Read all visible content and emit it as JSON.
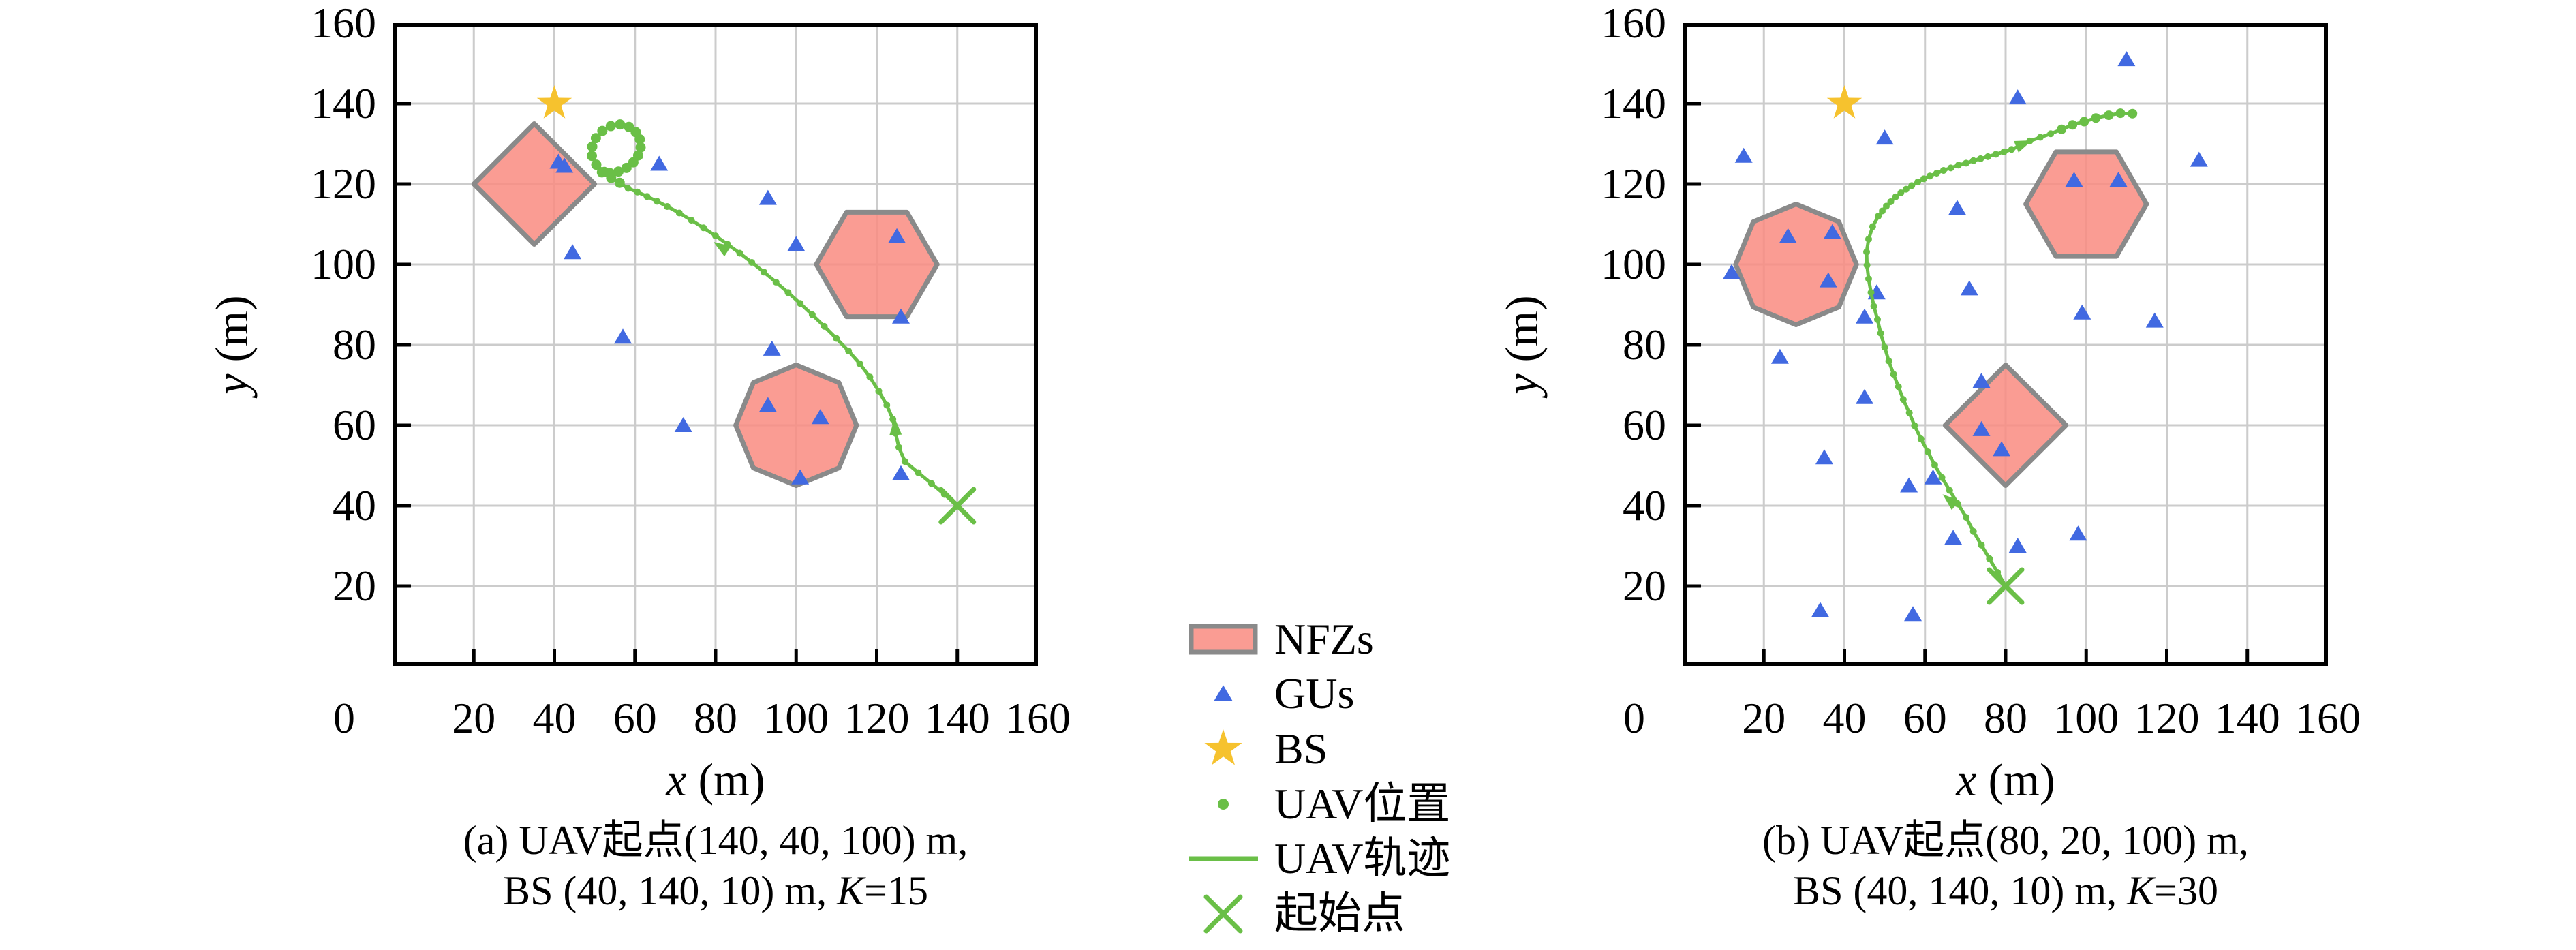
{
  "figure": {
    "colors": {
      "nfz_fill": "#f98b80",
      "nfz_edge": "#8a8a8a",
      "gu_blue": "#4169e1",
      "bs_gold": "#f6c22e",
      "uav_green": "#6abf47",
      "grid": "#cccccc",
      "axis": "#000000"
    },
    "legend": {
      "items": [
        {
          "type": "nfz-swatch",
          "label": "NFZs"
        },
        {
          "type": "triangle",
          "label": "GUs"
        },
        {
          "type": "star",
          "label": "BS"
        },
        {
          "type": "dot",
          "label": "UAV位置"
        },
        {
          "type": "line",
          "label": "UAV轨迹"
        },
        {
          "type": "x",
          "label": "起始点"
        }
      ]
    }
  },
  "chart_data": [
    {
      "type": "scatter",
      "id": "a",
      "title": "",
      "xlabel_var": "x",
      "xlabel_unit": " (m)",
      "ylabel_var": "y",
      "ylabel_unit": " (m)",
      "xlim": [
        0,
        160
      ],
      "ylim": [
        0,
        160
      ],
      "grid": true,
      "origin_label": "0",
      "xticks": [
        20,
        40,
        60,
        80,
        100,
        120,
        140,
        160
      ],
      "yticks": [
        20,
        40,
        60,
        80,
        100,
        120,
        140,
        160
      ],
      "caption": {
        "line1": "(a) UAV起点(140, 40, 100) m,",
        "line2_prefix": "BS (40, 140, 10) m, ",
        "line2_k": "K",
        "line2_suffix": "=15"
      },
      "bs": [
        40,
        140
      ],
      "start": [
        140,
        40
      ],
      "nfzs": [
        {
          "shape": "diamond",
          "center": [
            35,
            120
          ],
          "radius": 15
        },
        {
          "shape": "hexagon",
          "center": [
            120,
            100
          ],
          "radius": 15
        },
        {
          "shape": "octagon",
          "center": [
            100,
            60
          ],
          "radius": 15
        }
      ],
      "gus": [
        [
          41,
          125.5
        ],
        [
          42.5,
          124.5
        ],
        [
          66,
          125
        ],
        [
          93,
          116.5
        ],
        [
          100,
          105
        ],
        [
          125,
          107
        ],
        [
          126,
          87
        ],
        [
          44.5,
          103
        ],
        [
          57,
          82
        ],
        [
          72,
          60
        ],
        [
          94,
          79
        ],
        [
          93,
          65
        ],
        [
          106,
          62
        ],
        [
          101,
          47
        ],
        [
          126,
          48
        ]
      ],
      "trajectory": [
        [
          140,
          40
        ],
        [
          136.8,
          42.8
        ],
        [
          133.6,
          45.5
        ],
        [
          130.3,
          48.2
        ],
        [
          127,
          51
        ],
        [
          125.5,
          54.5
        ],
        [
          124.7,
          58
        ],
        [
          124,
          61.5
        ],
        [
          122.5,
          65
        ],
        [
          120.5,
          68.5
        ],
        [
          118.3,
          72
        ],
        [
          115.8,
          75.3
        ],
        [
          113,
          78.5
        ],
        [
          110,
          81.6
        ],
        [
          107,
          84.6
        ],
        [
          104,
          87.5
        ],
        [
          101,
          90.3
        ],
        [
          98,
          93
        ],
        [
          95,
          95.6
        ],
        [
          92,
          98.1
        ],
        [
          89,
          100.5
        ],
        [
          86,
          102.8
        ],
        [
          83,
          105
        ],
        [
          80,
          107.1
        ],
        [
          77,
          109.1
        ],
        [
          74,
          111
        ],
        [
          71,
          112.8
        ],
        [
          68,
          114.4
        ],
        [
          65.5,
          115.7
        ],
        [
          63,
          116.9
        ],
        [
          60.6,
          118
        ],
        [
          58.3,
          118.9
        ],
        [
          56.2,
          120.3
        ],
        [
          54.1,
          121.5
        ],
        [
          52.4,
          123
        ],
        [
          50.4,
          124.8
        ],
        [
          49.3,
          127
        ],
        [
          49.4,
          129.3
        ],
        [
          50.3,
          131.4
        ],
        [
          51.9,
          133.2
        ],
        [
          54,
          134.4
        ],
        [
          56.3,
          134.8
        ],
        [
          58.5,
          134.2
        ],
        [
          60.2,
          132.9
        ],
        [
          61.2,
          131.1
        ],
        [
          61.4,
          129.1
        ],
        [
          60.8,
          127.1
        ],
        [
          59.6,
          125.4
        ],
        [
          57.9,
          124
        ],
        [
          55.9,
          123.1
        ],
        [
          53.8,
          122.7
        ],
        [
          51.8,
          122.9
        ]
      ],
      "dot_r_default": 5,
      "dot_r_large": 7.5,
      "large_from_index": 32,
      "arrows": [
        {
          "pos": [
            81.6,
            104.2
          ],
          "angle_deg": 147
        },
        {
          "pos": [
            124.6,
            59.3
          ],
          "angle_deg": 93
        }
      ]
    },
    {
      "type": "scatter",
      "id": "b",
      "title": "",
      "xlabel_var": "x",
      "xlabel_unit": " (m)",
      "ylabel_var": "y",
      "ylabel_unit": " (m)",
      "xlim": [
        0,
        160
      ],
      "ylim": [
        0,
        160
      ],
      "grid": true,
      "origin_label": "0",
      "xticks": [
        20,
        40,
        60,
        80,
        100,
        120,
        140,
        160
      ],
      "yticks": [
        20,
        40,
        60,
        80,
        100,
        120,
        140,
        160
      ],
      "caption": {
        "line1": "(b) UAV起点(80, 20, 100) m,",
        "line2_prefix": "BS (40, 140, 10) m, ",
        "line2_k": "K",
        "line2_suffix": "=30"
      },
      "bs": [
        40,
        140
      ],
      "start": [
        80,
        20
      ],
      "nfzs": [
        {
          "shape": "octagon",
          "center": [
            28,
            100
          ],
          "radius": 15
        },
        {
          "shape": "hexagon",
          "center": [
            100,
            115
          ],
          "radius": 15
        },
        {
          "shape": "diamond",
          "center": [
            80,
            60
          ],
          "radius": 15
        }
      ],
      "gus": [
        [
          110,
          151
        ],
        [
          83,
          141.5
        ],
        [
          15,
          127
        ],
        [
          50,
          131.5
        ],
        [
          128,
          126
        ],
        [
          97,
          121
        ],
        [
          108,
          121
        ],
        [
          68,
          114
        ],
        [
          26,
          107
        ],
        [
          37,
          108
        ],
        [
          36,
          96
        ],
        [
          12,
          98
        ],
        [
          48,
          93
        ],
        [
          45,
          87
        ],
        [
          71,
          94
        ],
        [
          99,
          88
        ],
        [
          117,
          86
        ],
        [
          24,
          77
        ],
        [
          74,
          71
        ],
        [
          45,
          67
        ],
        [
          74,
          59
        ],
        [
          79,
          54
        ],
        [
          35,
          52
        ],
        [
          56,
          45
        ],
        [
          62,
          47
        ],
        [
          67,
          32
        ],
        [
          83,
          30
        ],
        [
          98,
          33
        ],
        [
          34,
          14
        ],
        [
          57,
          13
        ]
      ],
      "trajectory": [
        [
          80,
          20
        ],
        [
          78,
          23.4
        ],
        [
          76,
          26.8
        ],
        [
          74,
          30.2
        ],
        [
          72,
          33.6
        ],
        [
          70.2,
          37.1
        ],
        [
          68.2,
          40.4
        ],
        [
          66.1,
          43.8
        ],
        [
          64.2,
          47
        ],
        [
          62.4,
          50.1
        ],
        [
          60.7,
          53.4
        ],
        [
          59,
          56.6
        ],
        [
          57.4,
          59.9
        ],
        [
          56.1,
          63.1
        ],
        [
          54.6,
          66.4
        ],
        [
          53.4,
          69.6
        ],
        [
          52.2,
          72.7
        ],
        [
          51,
          76
        ],
        [
          50,
          79.4
        ],
        [
          49,
          82.9
        ],
        [
          48.2,
          86.3
        ],
        [
          47.3,
          89.6
        ],
        [
          46.6,
          93
        ],
        [
          46,
          96.4
        ],
        [
          45.6,
          99.8
        ],
        [
          45.5,
          103.1
        ],
        [
          46,
          106.3
        ],
        [
          47,
          109.4
        ],
        [
          48.4,
          112
        ],
        [
          49.4,
          113.3
        ],
        [
          50.4,
          114.5
        ],
        [
          51.5,
          115.6
        ],
        [
          52.7,
          116.8
        ],
        [
          54,
          117.8
        ],
        [
          55.3,
          118.7
        ],
        [
          56.7,
          119.6
        ],
        [
          58.2,
          120.5
        ],
        [
          59.7,
          121.3
        ],
        [
          61.2,
          122
        ],
        [
          62.9,
          122.7
        ],
        [
          64.6,
          123.4
        ],
        [
          66.4,
          124
        ],
        [
          68.3,
          124.7
        ],
        [
          70.2,
          125.2
        ],
        [
          72,
          125.8
        ],
        [
          73.8,
          126.3
        ],
        [
          75.6,
          126.8
        ],
        [
          77.6,
          127.4
        ],
        [
          79.6,
          128
        ],
        [
          81.5,
          128.6
        ],
        [
          83.7,
          129.6
        ],
        [
          86,
          130.7
        ],
        [
          88.6,
          131.6
        ],
        [
          91.2,
          132.5
        ],
        [
          93.9,
          133.6
        ],
        [
          96.6,
          134.7
        ],
        [
          99.5,
          135.5
        ],
        [
          102.4,
          136.4
        ],
        [
          105.6,
          137.1
        ],
        [
          108.5,
          137.6
        ],
        [
          111.5,
          137.5
        ]
      ],
      "dot_r_default": 5,
      "dot_r_large": 7,
      "large_from_index": 54,
      "arrows": [
        {
          "pos": [
            66.3,
            41.2
          ],
          "angle_deg": 140
        },
        {
          "pos": [
            84.2,
            129.9
          ],
          "angle_deg": 22
        }
      ]
    }
  ]
}
